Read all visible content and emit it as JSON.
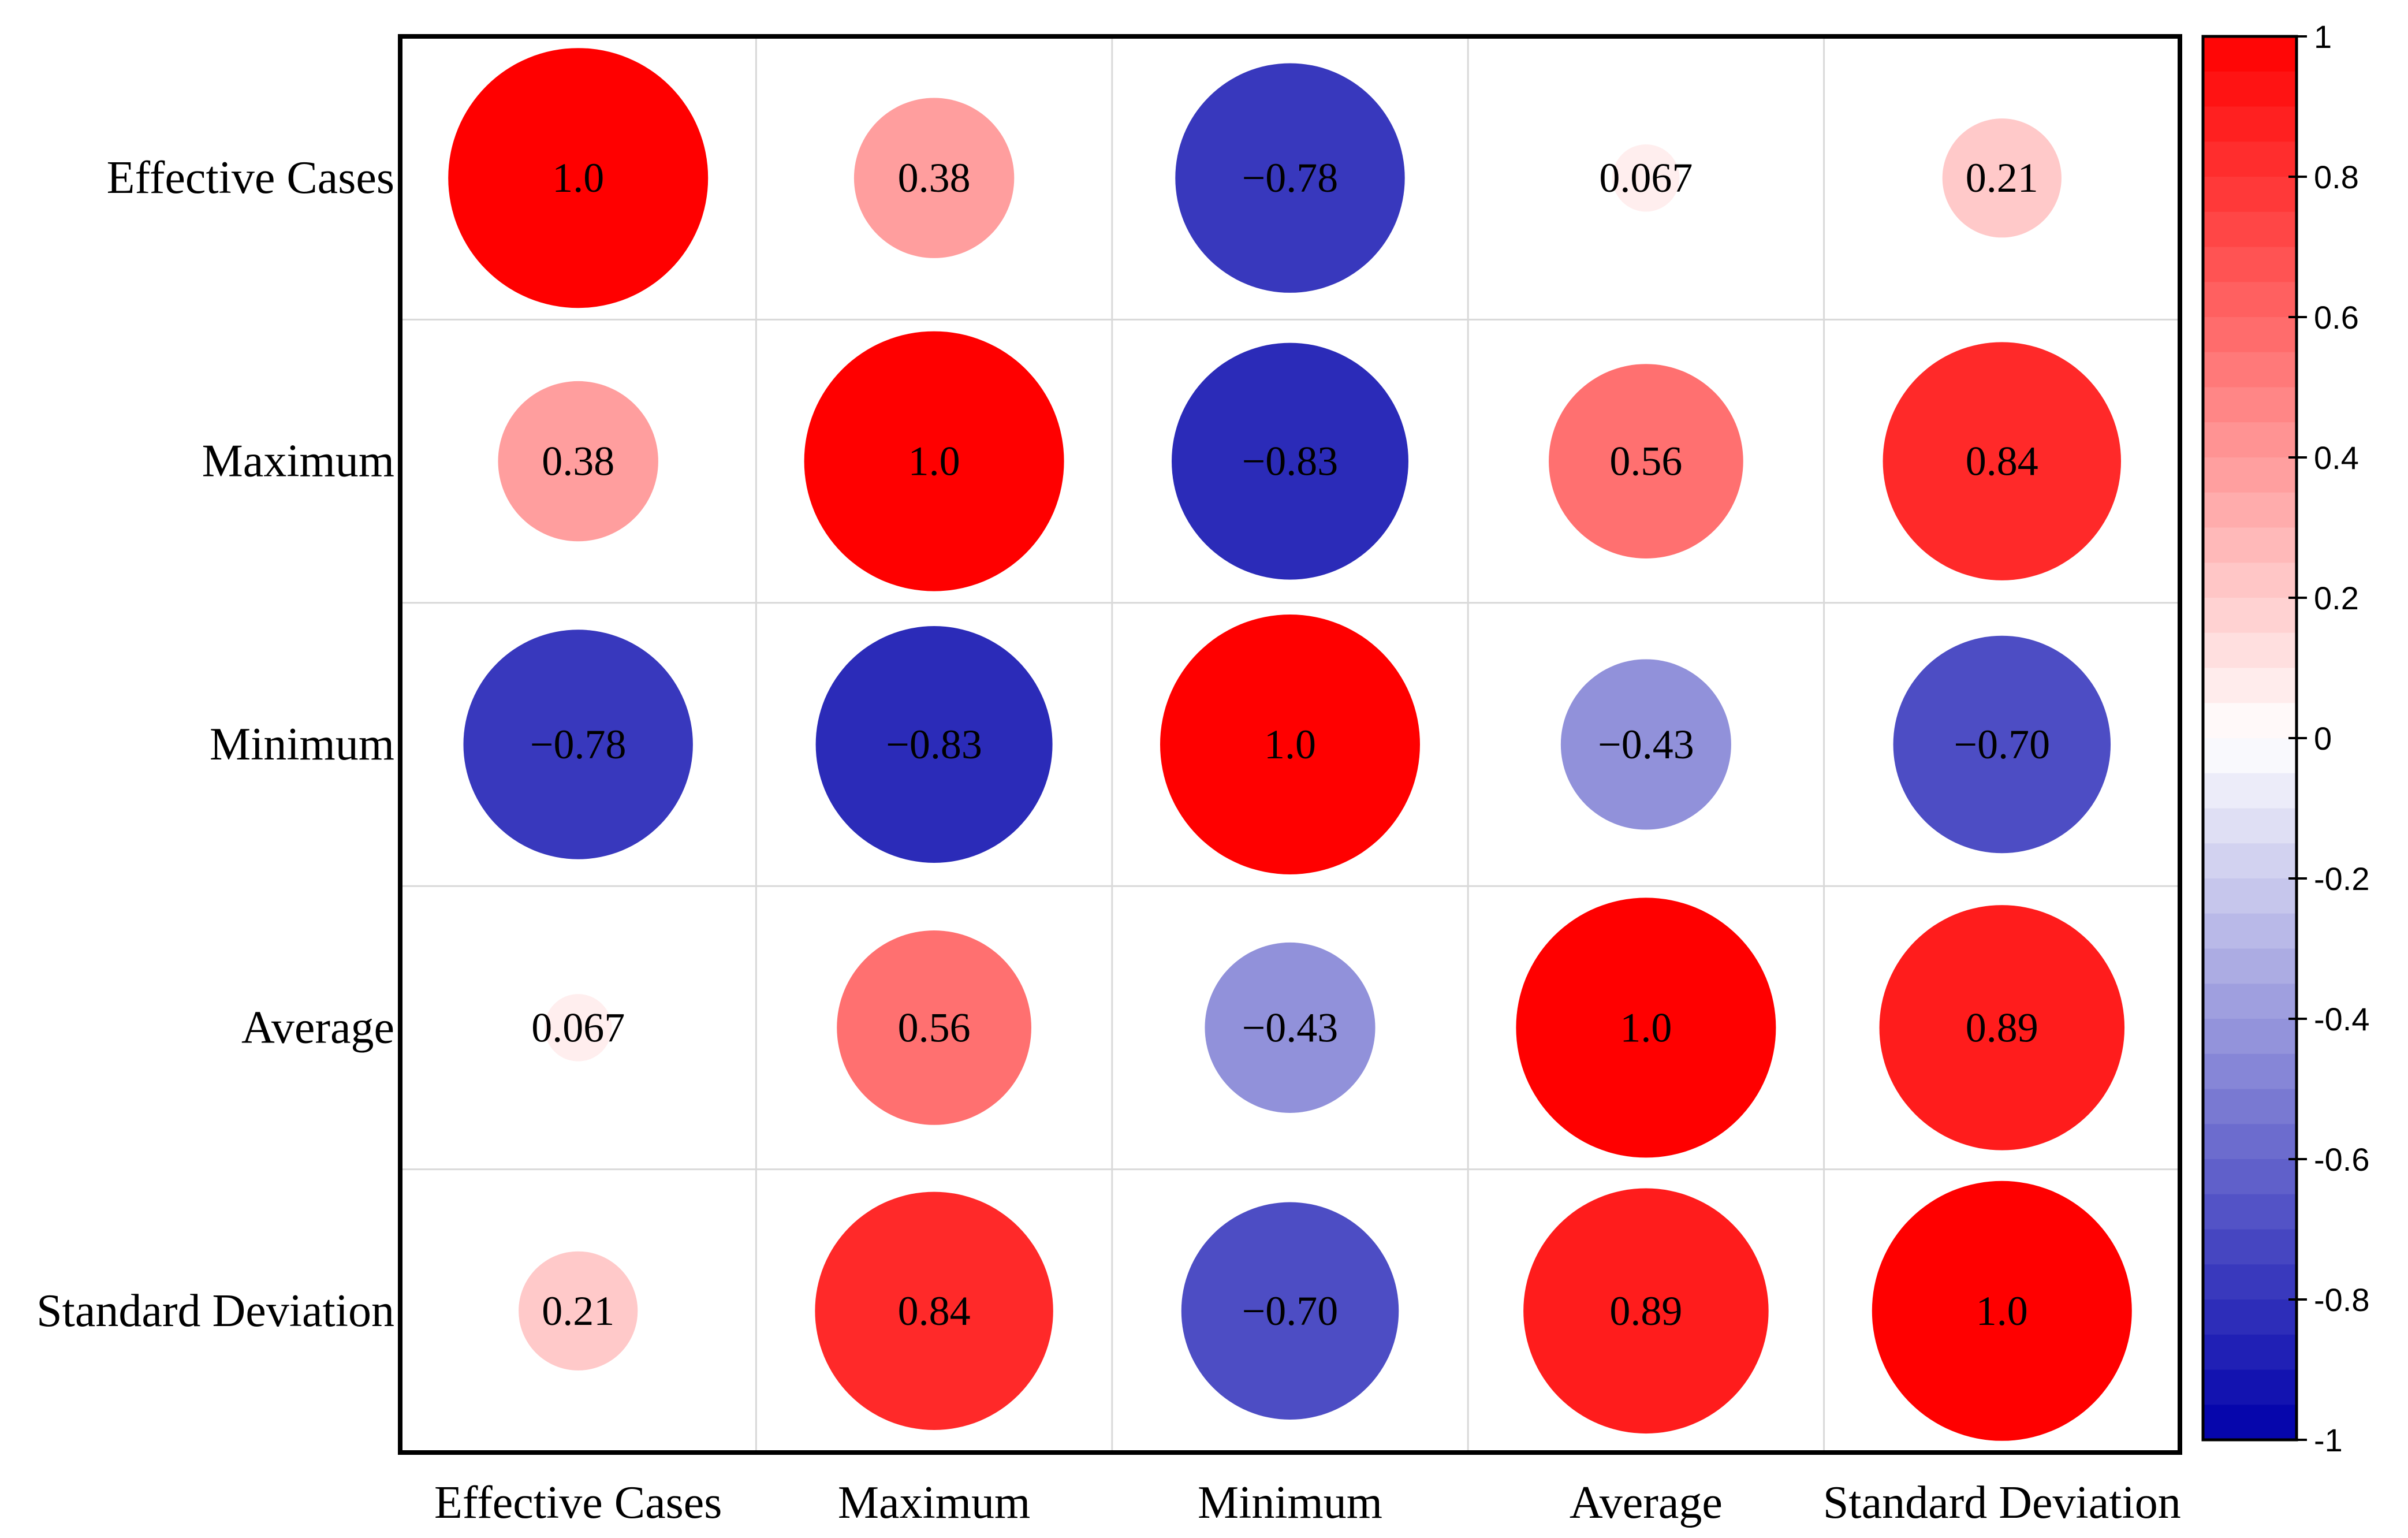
{
  "chart_data": {
    "type": "heatmap",
    "title": "",
    "xlabel": "",
    "ylabel": "",
    "variables": [
      "Effective Cases",
      "Maximum",
      "Minimum",
      "Average",
      "Standard Deviation"
    ],
    "matrix": [
      [
        1.0,
        0.38,
        -0.78,
        0.067,
        0.21
      ],
      [
        0.38,
        1.0,
        -0.83,
        0.56,
        0.84
      ],
      [
        -0.78,
        -0.83,
        1.0,
        -0.43,
        -0.7
      ],
      [
        0.067,
        0.56,
        -0.43,
        1.0,
        0.89
      ],
      [
        0.21,
        0.84,
        -0.7,
        0.89,
        1.0
      ]
    ],
    "labels": [
      [
        "1.0",
        "0.38",
        "−0.78",
        "0.067",
        "0.21"
      ],
      [
        "0.38",
        "1.0",
        "−0.83",
        "0.56",
        "0.84"
      ],
      [
        "−0.78",
        "−0.83",
        "1.0",
        "−0.43",
        "−0.70"
      ],
      [
        "0.067",
        "0.56",
        "−0.43",
        "1.0",
        "0.89"
      ],
      [
        "0.21",
        "0.84",
        "−0.70",
        "0.89",
        "1.0"
      ]
    ],
    "marker": "circle (area scales with |r|)",
    "colorbar": {
      "range": [
        -1,
        1
      ],
      "ticks": [
        {
          "value": 1,
          "label": "1"
        },
        {
          "value": 0.8,
          "label": "0.8"
        },
        {
          "value": 0.6,
          "label": "0.6"
        },
        {
          "value": 0.4,
          "label": "0.4"
        },
        {
          "value": 0.2,
          "label": "0.2"
        },
        {
          "value": 0,
          "label": "0"
        },
        {
          "value": -0.2,
          "label": "-0.2"
        },
        {
          "value": -0.4,
          "label": "-0.4"
        },
        {
          "value": -0.6,
          "label": "-0.6"
        },
        {
          "value": -0.8,
          "label": "-0.8"
        },
        {
          "value": -1,
          "label": "-1"
        }
      ],
      "low_color": "#0000aa",
      "mid_color": "#ffffff",
      "high_color": "#ff0000",
      "steps": 40
    },
    "grid": true,
    "legend": "colorbar at right"
  }
}
